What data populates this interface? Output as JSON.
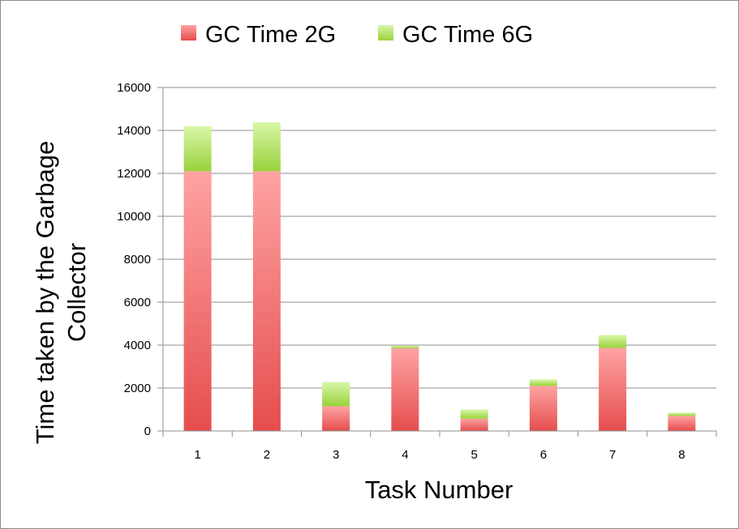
{
  "chart_data": {
    "type": "bar",
    "stacked": true,
    "categories": [
      "1",
      "2",
      "3",
      "4",
      "5",
      "6",
      "7",
      "8"
    ],
    "series": [
      {
        "name": "GC Time 2G",
        "values": [
          12100,
          12100,
          1150,
          3850,
          570,
          2100,
          3870,
          700
        ],
        "color": "#e54d4d",
        "color_light": "#ffa3a3"
      },
      {
        "name": "GC Time 6G",
        "values": [
          2100,
          2280,
          1130,
          120,
          430,
          300,
          600,
          150
        ],
        "color": "#9ad23c",
        "color_light": "#d8f7a8"
      }
    ],
    "xlabel": "Task Number",
    "ylabel": "Time taken by the Garbage Collector",
    "ylim": [
      0,
      16000
    ],
    "yticks": [
      0,
      2000,
      4000,
      6000,
      8000,
      10000,
      12000,
      14000,
      16000
    ],
    "grid": true,
    "legend_position": "top"
  }
}
